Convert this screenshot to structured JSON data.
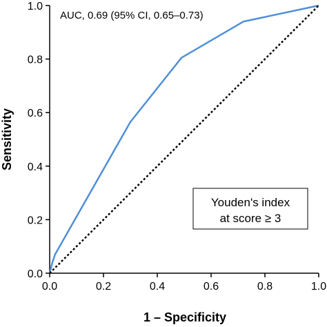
{
  "chart_data": {
    "type": "line",
    "title": "",
    "xlabel": "1 – Specificity",
    "ylabel": "Sensitivity",
    "xlim": [
      0,
      1
    ],
    "ylim": [
      0,
      1
    ],
    "x_ticks": [
      "0.0",
      "0.2",
      "0.4",
      "0.6",
      "0.8",
      "1.0"
    ],
    "y_ticks": [
      "0.0",
      "0.2",
      "0.4",
      "0.6",
      "0.8",
      "1.0"
    ],
    "grid": false,
    "series": [
      {
        "type": "line",
        "color": "#4f8fd6",
        "x": [
          0.0,
          0.01,
          0.02,
          0.3,
          0.49,
          0.72,
          1.0
        ],
        "y": [
          0.0,
          0.04,
          0.07,
          0.565,
          0.805,
          0.94,
          1.0
        ]
      },
      {
        "type": "reference-line",
        "style": "dotted",
        "color": "#000000",
        "x": [
          0.0,
          1.0
        ],
        "y": [
          0.0,
          1.0
        ]
      }
    ],
    "annotations": {
      "auc": "AUC, 0.69 (95% CI, 0.65–0.73)",
      "youden_line1": "Youden's index",
      "youden_line2": "at score ≥ 3"
    }
  }
}
